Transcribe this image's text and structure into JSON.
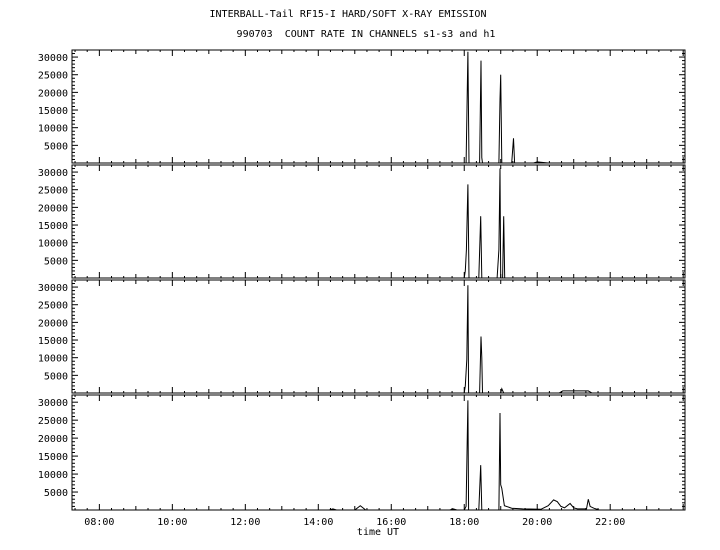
{
  "title_line1": "INTERBALL-Tail RF15-I HARD/SOFT X-RAY EMISSION",
  "title_line2": "990703  COUNT RATE IN CHANNELS s1-s3 and h1",
  "chart_data": {
    "type": "line",
    "xlabel": "time UT",
    "x_ticks": [
      "08:00",
      "10:00",
      "12:00",
      "14:00",
      "16:00",
      "18:00",
      "20:00",
      "22:00"
    ],
    "x_tick_hours": [
      8,
      10,
      12,
      14,
      16,
      18,
      20,
      22
    ],
    "xlim_hours": [
      7.25,
      24.05
    ],
    "ylim": [
      0,
      32000
    ],
    "y_ticks": [
      5000,
      10000,
      15000,
      20000,
      25000,
      30000
    ],
    "grid": false,
    "series": [
      {
        "points": [
          [
            7.3,
            0
          ],
          [
            18.05,
            0
          ],
          [
            18.1,
            31500
          ],
          [
            18.13,
            0
          ],
          [
            18.25,
            0
          ],
          [
            18.42,
            0
          ],
          [
            18.46,
            29000
          ],
          [
            18.48,
            1500
          ],
          [
            18.5,
            0
          ],
          [
            18.95,
            0
          ],
          [
            18.98,
            18000
          ],
          [
            19.0,
            25000
          ],
          [
            19.03,
            0
          ],
          [
            19.3,
            0
          ],
          [
            19.35,
            7000
          ],
          [
            19.38,
            0
          ],
          [
            19.9,
            0
          ],
          [
            20.0,
            300
          ],
          [
            20.3,
            0
          ],
          [
            24.0,
            0
          ]
        ]
      },
      {
        "points": [
          [
            7.3,
            0
          ],
          [
            18.0,
            0
          ],
          [
            18.03,
            2000
          ],
          [
            18.06,
            8000
          ],
          [
            18.1,
            26500
          ],
          [
            18.13,
            0
          ],
          [
            18.4,
            0
          ],
          [
            18.45,
            17500
          ],
          [
            18.48,
            0
          ],
          [
            18.9,
            0
          ],
          [
            18.95,
            8000
          ],
          [
            18.98,
            31000
          ],
          [
            19.0,
            0
          ],
          [
            19.05,
            0
          ],
          [
            19.08,
            17500
          ],
          [
            19.11,
            0
          ],
          [
            24.0,
            0
          ]
        ]
      },
      {
        "points": [
          [
            7.3,
            0
          ],
          [
            18.0,
            0
          ],
          [
            18.03,
            2000
          ],
          [
            18.07,
            9500
          ],
          [
            18.1,
            30500
          ],
          [
            18.12,
            0
          ],
          [
            18.42,
            0
          ],
          [
            18.46,
            16000
          ],
          [
            18.48,
            10000
          ],
          [
            18.5,
            0
          ],
          [
            19.0,
            0
          ],
          [
            19.03,
            1200
          ],
          [
            19.08,
            0
          ],
          [
            20.6,
            0
          ],
          [
            20.7,
            600
          ],
          [
            21.4,
            600
          ],
          [
            21.5,
            0
          ],
          [
            24.0,
            0
          ]
        ]
      },
      {
        "points": [
          [
            7.3,
            0
          ],
          [
            14.3,
            0
          ],
          [
            14.4,
            300
          ],
          [
            14.5,
            0
          ],
          [
            15.0,
            0
          ],
          [
            15.15,
            1200
          ],
          [
            15.3,
            0
          ],
          [
            17.6,
            0
          ],
          [
            17.7,
            300
          ],
          [
            17.8,
            0
          ],
          [
            18.0,
            0
          ],
          [
            18.05,
            1000
          ],
          [
            18.1,
            30500
          ],
          [
            18.12,
            0
          ],
          [
            18.4,
            0
          ],
          [
            18.45,
            12500
          ],
          [
            18.48,
            0
          ],
          [
            18.95,
            0
          ],
          [
            18.98,
            27000
          ],
          [
            19.0,
            7000
          ],
          [
            19.03,
            6000
          ],
          [
            19.1,
            1200
          ],
          [
            19.3,
            500
          ],
          [
            19.6,
            300
          ],
          [
            20.1,
            200
          ],
          [
            20.3,
            1200
          ],
          [
            20.45,
            2800
          ],
          [
            20.55,
            2300
          ],
          [
            20.65,
            1000
          ],
          [
            20.75,
            600
          ],
          [
            20.9,
            1800
          ],
          [
            21.0,
            600
          ],
          [
            21.1,
            300
          ],
          [
            21.35,
            300
          ],
          [
            21.4,
            3000
          ],
          [
            21.45,
            1000
          ],
          [
            21.55,
            500
          ],
          [
            21.7,
            0
          ],
          [
            24.0,
            0
          ]
        ]
      }
    ]
  }
}
